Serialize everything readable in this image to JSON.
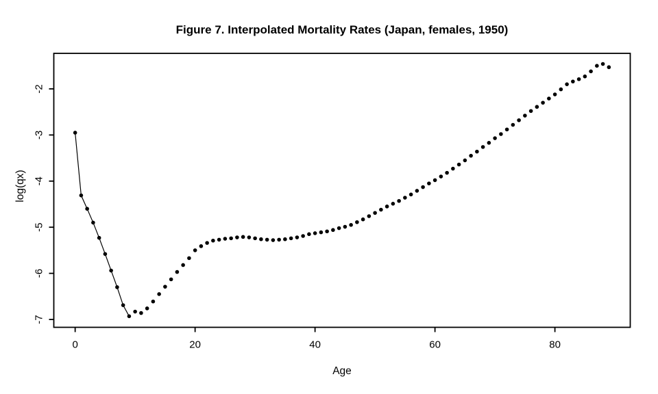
{
  "figure": {
    "title": "Figure 7. Interpolated Mortality Rates (Japan, females, 1950)",
    "xlabel": "Age",
    "ylabel": "log(qx)"
  },
  "colors": {
    "background": "#ffffff",
    "axis": "#000000",
    "point": "#000000",
    "line": "#000000"
  },
  "chart_data": {
    "type": "scatter",
    "title": "Figure 7. Interpolated Mortality Rates (Japan, females, 1950)",
    "xlabel": "Age",
    "ylabel": "log(qx)",
    "grid": false,
    "legend": null,
    "marker": "filled-circle",
    "marker_color": "#000000",
    "xlim": [
      -3.56,
      92.56
    ],
    "ylim": [
      -7.17,
      -1.23
    ],
    "x_ticks": [
      0,
      20,
      40,
      60,
      80
    ],
    "y_ticks": [
      -7,
      -6,
      -5,
      -4,
      -3,
      -2
    ],
    "connector_line": {
      "from_age": 0,
      "to_age": 9,
      "style": "thin-solid"
    },
    "x": [
      0,
      1,
      2,
      3,
      4,
      5,
      6,
      7,
      8,
      9,
      10,
      11,
      12,
      13,
      14,
      15,
      16,
      17,
      18,
      19,
      20,
      21,
      22,
      23,
      24,
      25,
      26,
      27,
      28,
      29,
      30,
      31,
      32,
      33,
      34,
      35,
      36,
      37,
      38,
      39,
      40,
      41,
      42,
      43,
      44,
      45,
      46,
      47,
      48,
      49,
      50,
      51,
      52,
      53,
      54,
      55,
      56,
      57,
      58,
      59,
      60,
      61,
      62,
      63,
      64,
      65,
      66,
      67,
      68,
      69,
      70,
      71,
      72,
      73,
      74,
      75,
      76,
      77,
      78,
      79,
      80,
      81,
      82,
      83,
      84,
      85,
      86,
      87,
      88,
      89
    ],
    "y": [
      -2.95,
      -4.31,
      -4.6,
      -4.9,
      -5.23,
      -5.58,
      -5.94,
      -6.3,
      -6.69,
      -6.93,
      -6.83,
      -6.86,
      -6.76,
      -6.61,
      -6.45,
      -6.29,
      -6.13,
      -5.97,
      -5.82,
      -5.67,
      -5.5,
      -5.41,
      -5.34,
      -5.29,
      -5.27,
      -5.25,
      -5.24,
      -5.22,
      -5.21,
      -5.22,
      -5.24,
      -5.26,
      -5.27,
      -5.28,
      -5.27,
      -5.26,
      -5.24,
      -5.22,
      -5.19,
      -5.15,
      -5.13,
      -5.11,
      -5.09,
      -5.06,
      -5.02,
      -4.99,
      -4.95,
      -4.89,
      -4.83,
      -4.76,
      -4.69,
      -4.62,
      -4.55,
      -4.49,
      -4.43,
      -4.36,
      -4.29,
      -4.21,
      -4.13,
      -4.05,
      -3.98,
      -3.9,
      -3.82,
      -3.73,
      -3.64,
      -3.55,
      -3.45,
      -3.36,
      -3.26,
      -3.17,
      -3.07,
      -2.98,
      -2.88,
      -2.78,
      -2.68,
      -2.58,
      -2.48,
      -2.39,
      -2.3,
      -2.21,
      -2.12,
      -2.01,
      -1.9,
      -1.84,
      -1.79,
      -1.73,
      -1.62,
      -1.5,
      -1.46,
      -1.53
    ]
  }
}
